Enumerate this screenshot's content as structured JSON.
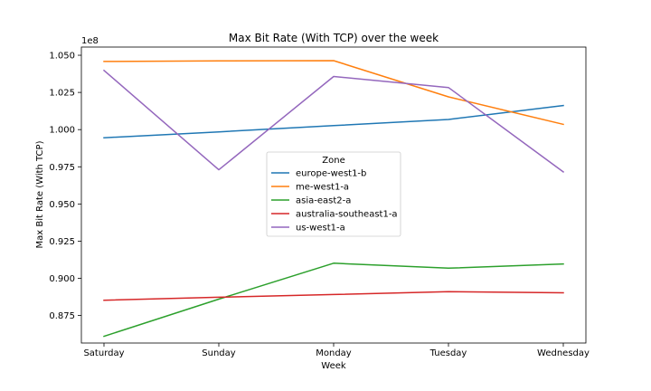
{
  "chart_data": {
    "type": "line",
    "title": "Max Bit Rate (With TCP) over the week",
    "xlabel": "Week",
    "ylabel": "Max Bit Rate (With TCP)",
    "offset_label": "1e8",
    "categories": [
      "Saturday",
      "Sunday",
      "Monday",
      "Tuesday",
      "Wednesday"
    ],
    "y_ticks": [
      0.875,
      0.9,
      0.925,
      0.95,
      0.975,
      1.0,
      1.025,
      1.05
    ],
    "y_tick_labels": [
      "0.875",
      "0.900",
      "0.925",
      "0.950",
      "0.975",
      "1.000",
      "1.025",
      "1.050"
    ],
    "ylim": [
      0.8565,
      1.0555
    ],
    "grid": false,
    "legend": {
      "title": "Zone",
      "placement": "center"
    },
    "series": [
      {
        "name": "europe-west1-b",
        "color": "#1f77b4",
        "values": [
          0.9945,
          0.9985,
          1.0027,
          1.0068,
          1.0162
        ]
      },
      {
        "name": "me-west1-a",
        "color": "#ff7f0e",
        "values": [
          1.0458,
          1.0462,
          1.0464,
          1.022,
          1.0035
        ]
      },
      {
        "name": "asia-east2-a",
        "color": "#2ca02c",
        "values": [
          0.861,
          0.886,
          0.9102,
          0.9068,
          0.9097
        ]
      },
      {
        "name": "australia-southeast1-a",
        "color": "#d62728",
        "values": [
          0.8853,
          0.8873,
          0.8891,
          0.891,
          0.8903
        ]
      },
      {
        "name": "us-west1-a",
        "color": "#9467bd",
        "values": [
          1.0398,
          0.973,
          1.0357,
          1.0283,
          0.9716
        ]
      }
    ]
  }
}
